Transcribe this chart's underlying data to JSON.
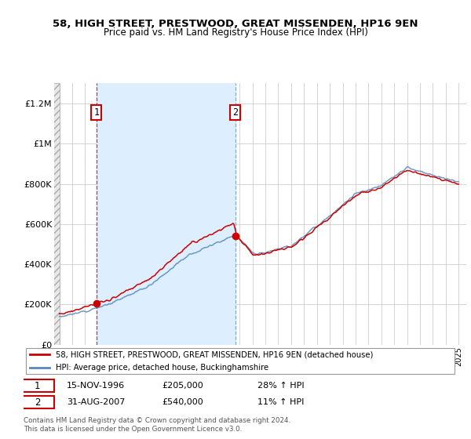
{
  "title": "58, HIGH STREET, PRESTWOOD, GREAT MISSENDEN, HP16 9EN",
  "subtitle": "Price paid vs. HM Land Registry's House Price Index (HPI)",
  "legend_line1": "58, HIGH STREET, PRESTWOOD, GREAT MISSENDEN, HP16 9EN (detached house)",
  "legend_line2": "HPI: Average price, detached house, Buckinghamshire",
  "footnote": "Contains HM Land Registry data © Crown copyright and database right 2024.\nThis data is licensed under the Open Government Licence v3.0.",
  "transaction1_date": "15-NOV-1996",
  "transaction1_price": 205000,
  "transaction1_pct": "28% ↑ HPI",
  "transaction2_date": "31-AUG-2007",
  "transaction2_price": 540000,
  "transaction2_pct": "11% ↑ HPI",
  "red_color": "#cc0000",
  "blue_color": "#5588bb",
  "shade_color": "#ddeeff",
  "ylim": [
    0,
    1300000
  ],
  "yticks": [
    0,
    200000,
    400000,
    600000,
    800000,
    1000000,
    1200000
  ],
  "ytick_labels": [
    "£0",
    "£200K",
    "£400K",
    "£600K",
    "£800K",
    "£1M",
    "£1.2M"
  ],
  "t1_year": 1996.88,
  "t2_year": 2007.67,
  "t1_price": 205000,
  "t2_price": 540000
}
